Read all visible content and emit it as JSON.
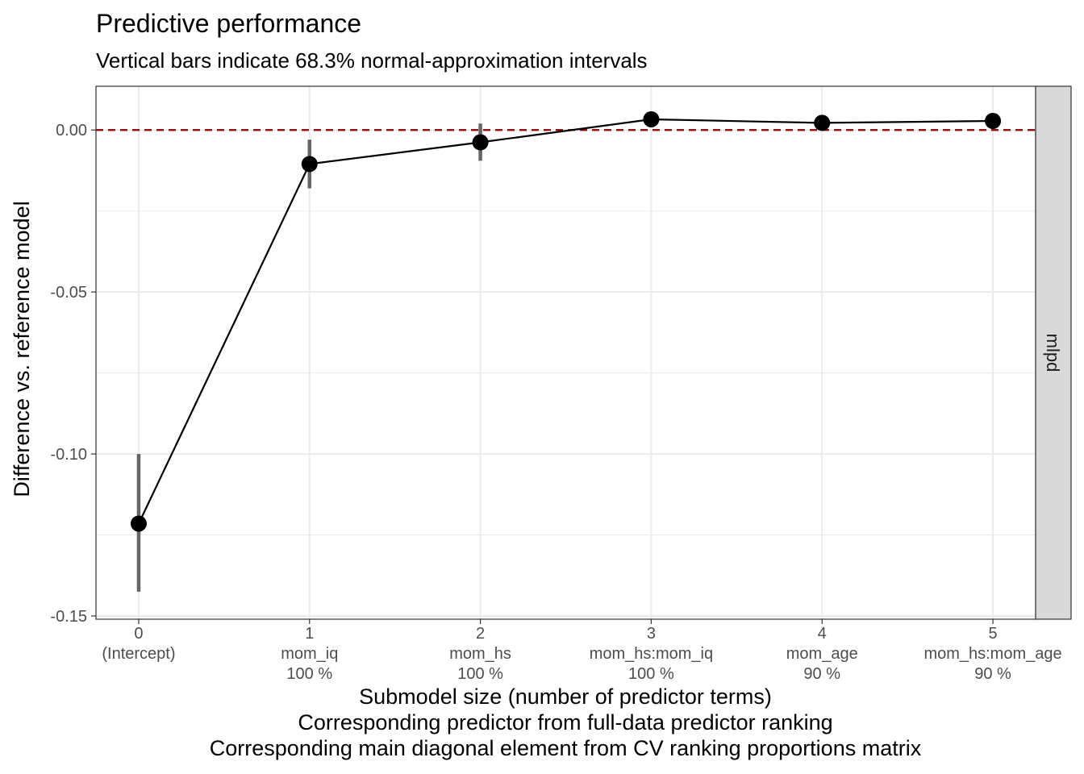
{
  "chart_data": {
    "type": "line",
    "title": "Predictive performance",
    "subtitle": "Vertical bars indicate 68.3% normal-approximation intervals",
    "xlabel_lines": [
      "Submodel size (number of predictor terms)",
      "Corresponding predictor from full-data predictor ranking",
      "Corresponding main diagonal element from CV ranking proportions matrix"
    ],
    "ylabel": "Difference vs. reference model",
    "facet_label": "mlpd",
    "x": [
      0,
      1,
      2,
      3,
      4,
      5
    ],
    "x_tick_labels": [
      [
        "0",
        "(Intercept)",
        ""
      ],
      [
        "1",
        "mom_iq",
        "100 %"
      ],
      [
        "2",
        "mom_hs",
        "100 %"
      ],
      [
        "3",
        "mom_hs:mom_iq",
        "100 %"
      ],
      [
        "4",
        "mom_age",
        "90 %"
      ],
      [
        "5",
        "mom_hs:mom_age",
        "90 %"
      ]
    ],
    "y": [
      -0.1215,
      -0.0105,
      -0.0038,
      0.0033,
      0.0022,
      0.0028
    ],
    "y_lower": [
      -0.1425,
      -0.018,
      -0.0095,
      0.001,
      0.001,
      0.001
    ],
    "y_upper": [
      -0.1,
      -0.003,
      0.002,
      0.0055,
      0.0035,
      0.0045
    ],
    "reference_line_y": 0,
    "xlim": [
      -0.25,
      5.25
    ],
    "ylim": [
      -0.151,
      0.0135
    ],
    "y_ticks": [
      0.0,
      -0.05,
      -0.1,
      -0.15
    ],
    "y_tick_labels": [
      "0.00",
      "-0.05",
      "-0.10",
      "-0.15"
    ],
    "grid": true,
    "colors": {
      "line": "#000000",
      "points": "#000000",
      "error_bars": "#666666",
      "reference_line": "#8b0000",
      "grid": "#ebebeb",
      "strip_fill": "#d9d9d9"
    }
  }
}
